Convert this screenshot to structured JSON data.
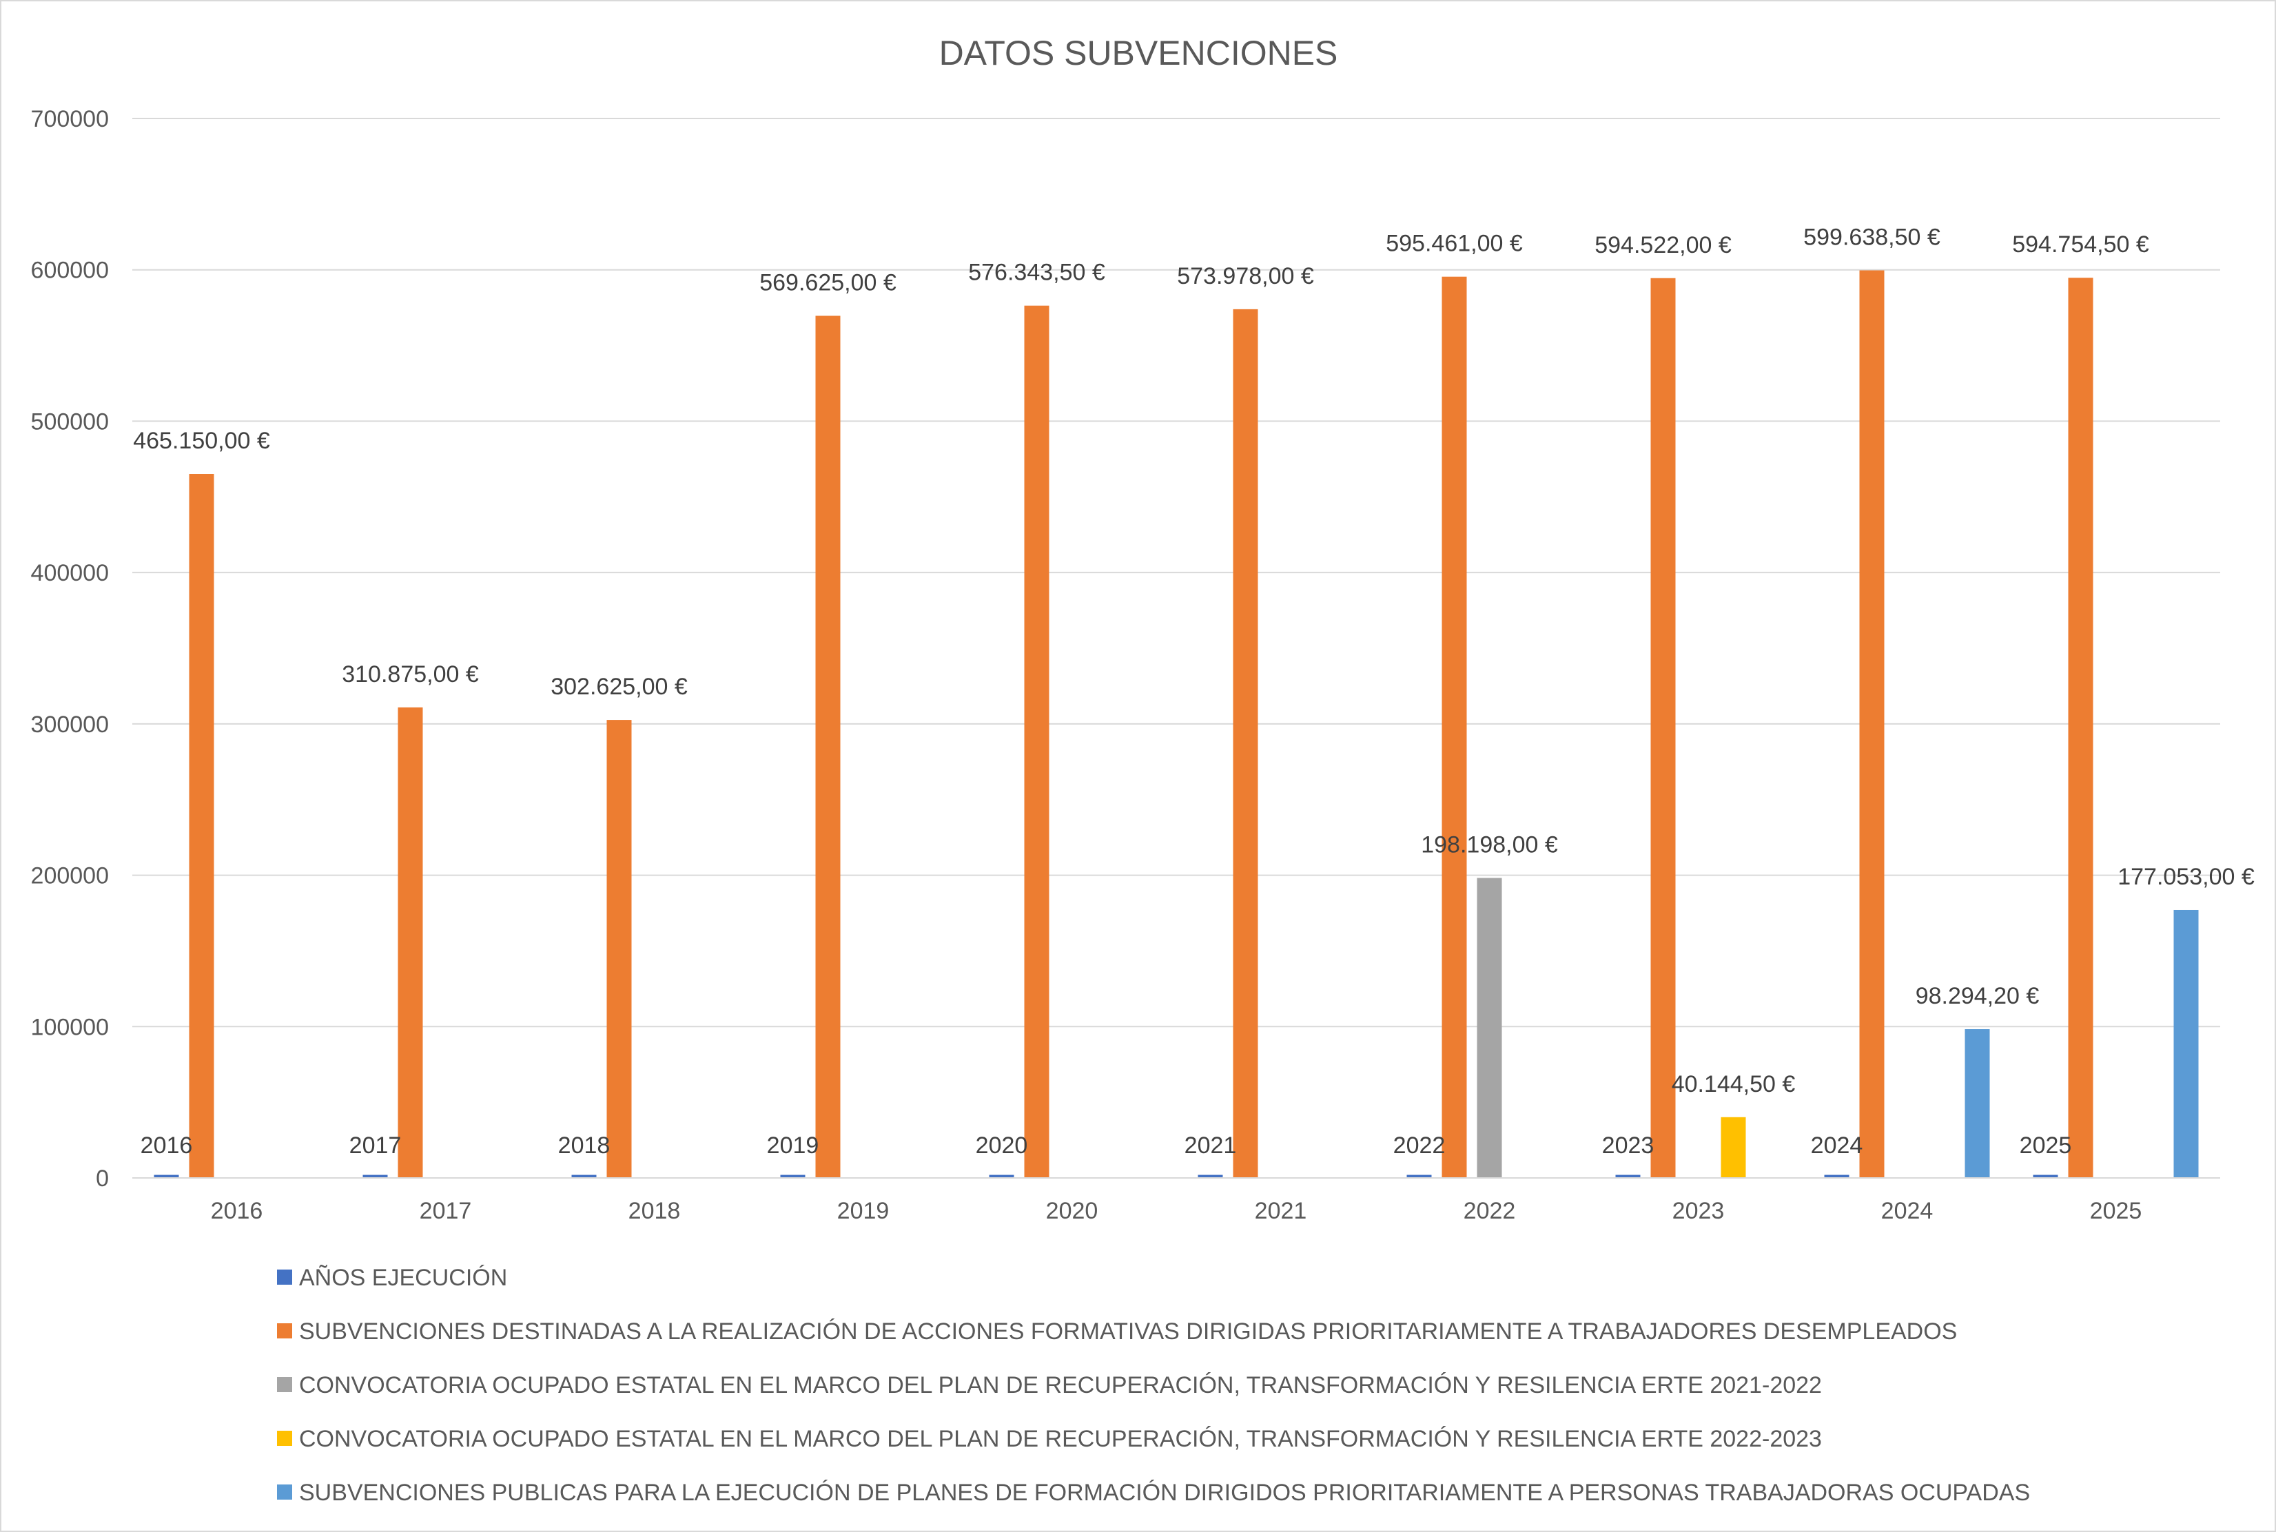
{
  "chart_data": {
    "type": "bar",
    "title": "DATOS SUBVENCIONES",
    "xlabel": "",
    "ylabel": "",
    "ylim": [
      0,
      700000
    ],
    "yticks": [
      "0",
      "100000",
      "200000",
      "300000",
      "400000",
      "500000",
      "600000",
      "700000"
    ],
    "categories": [
      "2016",
      "2017",
      "2018",
      "2019",
      "2020",
      "2021",
      "2022",
      "2023",
      "2024",
      "2025"
    ],
    "grid": true,
    "legend_position": "bottom",
    "series": [
      {
        "name": "AÑOS EJECUCIÓN",
        "color": "#4472C4",
        "values": [
          2016,
          2017,
          2018,
          2019,
          2020,
          2021,
          2022,
          2023,
          2024,
          2025
        ],
        "labels": [
          "2016",
          "2017",
          "2018",
          "2019",
          "2020",
          "2021",
          "2022",
          "2023",
          "2024",
          "2025"
        ]
      },
      {
        "name": "SUBVENCIONES DESTINADAS A LA REALIZACIÓN DE ACCIONES FORMATIVAS DIRIGIDAS PRIORITARIAMENTE A TRABAJADORES DESEMPLEADOS",
        "color": "#ED7D31",
        "values": [
          465150,
          310875,
          302625,
          569625,
          576343.5,
          573978,
          595461,
          594522,
          599638.5,
          594754.5
        ],
        "labels": [
          "465.150,00 €",
          "310.875,00 €",
          "302.625,00 €",
          "569.625,00 €",
          "576.343,50 €",
          "573.978,00 €",
          "595.461,00 €",
          "594.522,00 €",
          "599.638,50 €",
          "594.754,50 €"
        ]
      },
      {
        "name": "CONVOCATORIA OCUPADO ESTATAL EN EL MARCO DEL PLAN DE RECUPERACIÓN, TRANSFORMACIÓN Y RESILENCIA ERTE 2021-2022",
        "color": "#A5A5A5",
        "values": [
          null,
          null,
          null,
          null,
          null,
          null,
          198198,
          null,
          null,
          null
        ],
        "labels": [
          null,
          null,
          null,
          null,
          null,
          null,
          "198.198,00 €",
          null,
          null,
          null
        ]
      },
      {
        "name": "CONVOCATORIA OCUPADO ESTATAL EN EL MARCO DEL PLAN DE RECUPERACIÓN, TRANSFORMACIÓN Y RESILENCIA ERTE 2022-2023",
        "color": "#FFC000",
        "values": [
          null,
          null,
          null,
          null,
          null,
          null,
          null,
          40144.5,
          null,
          null
        ],
        "labels": [
          null,
          null,
          null,
          null,
          null,
          null,
          null,
          "40.144,50 €",
          null,
          null
        ]
      },
      {
        "name": "SUBVENCIONES PUBLICAS PARA LA EJECUCIÓN DE PLANES DE FORMACIÓN DIRIGIDOS PRIORITARIAMENTE A PERSONAS TRABAJADORAS OCUPADAS",
        "color": "#5B9BD5",
        "values": [
          null,
          null,
          null,
          null,
          null,
          null,
          null,
          null,
          98294.2,
          177053
        ],
        "labels": [
          null,
          null,
          null,
          null,
          null,
          null,
          null,
          null,
          "98.294,20 €",
          "177.053,00 €"
        ]
      }
    ]
  }
}
